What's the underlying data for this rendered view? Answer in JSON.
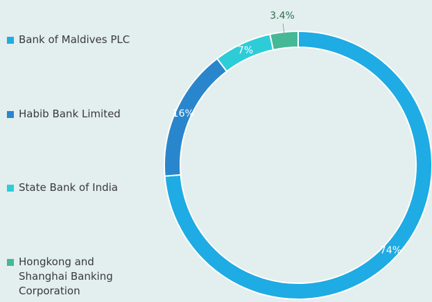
{
  "chart_data": {
    "type": "donut",
    "categories": [
      "Bank of Maldives PLC",
      "Habib Bank Limited",
      "State Bank of India",
      "Hongkong and Shanghai Banking Corporation"
    ],
    "values": [
      74,
      16,
      7,
      3.4
    ],
    "value_labels": [
      "74%",
      "16%",
      "7%",
      "3.4%"
    ],
    "colors": [
      "#1fabe3",
      "#2a86cc",
      "#2dcdd8",
      "#45b896"
    ],
    "legend": "left"
  }
}
